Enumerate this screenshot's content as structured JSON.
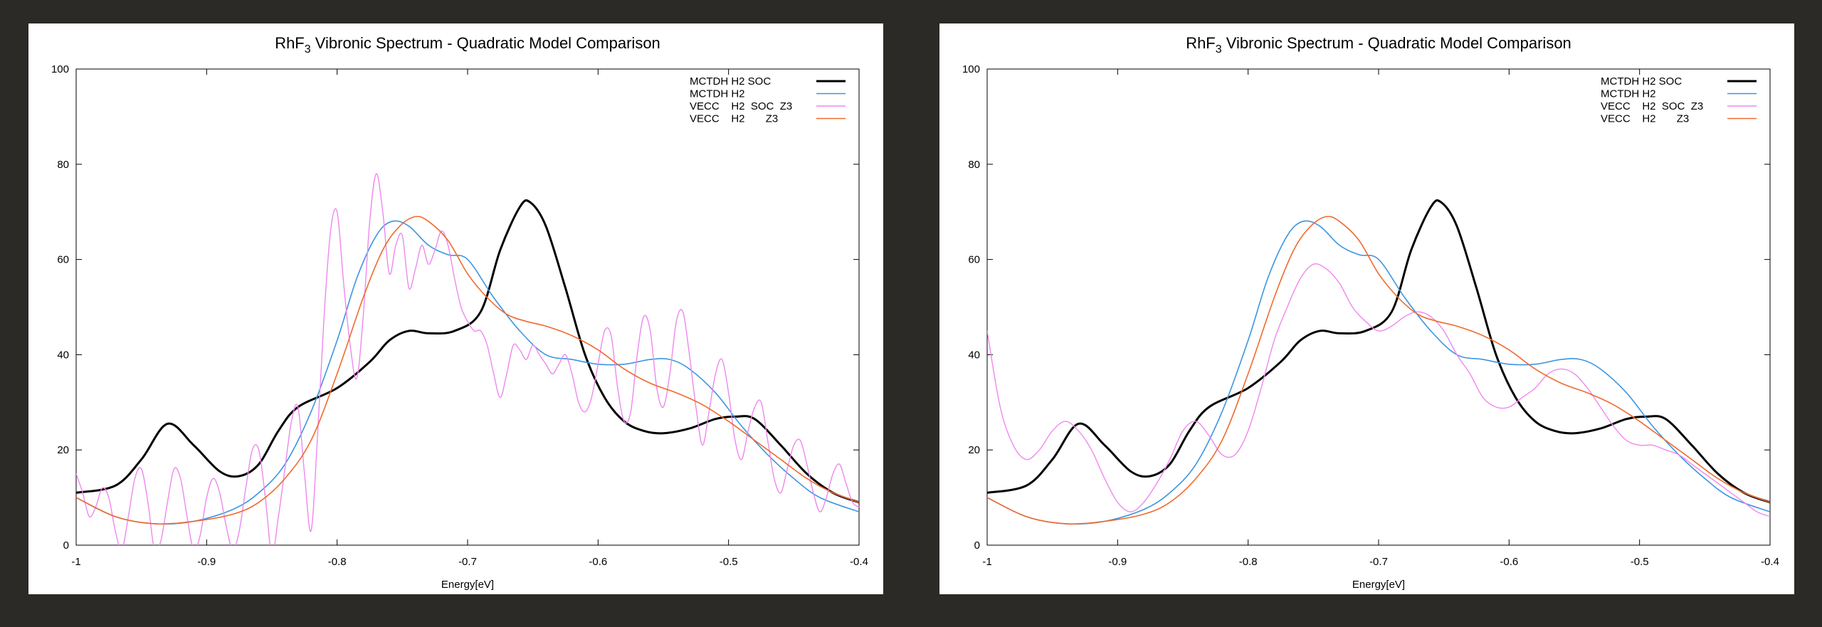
{
  "chart_data": [
    {
      "type": "line",
      "title": "RhF3 Vibronic Spectrum - Quadratic Model Comparison",
      "title_main": "RhF",
      "title_sub": "3",
      "title_rest": " Vibronic Spectrum - Quadratic Model Comparison",
      "xlabel": "Energy[eV]",
      "ylabel": "",
      "xlim": [
        -1,
        -0.4
      ],
      "ylim": [
        0,
        100
      ],
      "xticks": [
        "-1",
        "-0.9",
        "-0.8",
        "-0.7",
        "-0.6",
        "-0.5",
        "-0.4"
      ],
      "yticks": [
        "0",
        "20",
        "40",
        "60",
        "80",
        "100"
      ],
      "grid": false,
      "legend_position": "top-right",
      "series": [
        {
          "name": "MCTDH H2 SOC",
          "label": "MCTDH H2 SOC",
          "color": "#000000",
          "width": 3,
          "x": [
            -1,
            -0.97,
            -0.95,
            -0.93,
            -0.91,
            -0.89,
            -0.875,
            -0.86,
            -0.845,
            -0.83,
            -0.8,
            -0.775,
            -0.76,
            -0.745,
            -0.73,
            -0.71,
            -0.69,
            -0.675,
            -0.66,
            -0.652,
            -0.64,
            -0.625,
            -0.61,
            -0.595,
            -0.58,
            -0.565,
            -0.55,
            -0.53,
            -0.51,
            -0.495,
            -0.48,
            -0.46,
            -0.44,
            -0.42,
            -0.4
          ],
          "y": [
            11,
            12.5,
            18,
            25.5,
            21,
            15.5,
            14.5,
            17,
            24,
            29,
            33,
            38.5,
            43,
            45,
            44.5,
            45,
            49,
            62,
            71,
            72,
            67,
            54,
            40,
            31,
            26,
            24,
            23.5,
            24.5,
            26.5,
            27,
            26.5,
            21,
            15,
            11,
            9
          ]
        },
        {
          "name": "MCTDH H2",
          "label": "MCTDH H2",
          "color": "#3c95e0",
          "width": 1.6,
          "x": [
            -1,
            -0.97,
            -0.94,
            -0.91,
            -0.88,
            -0.86,
            -0.84,
            -0.82,
            -0.8,
            -0.785,
            -0.77,
            -0.758,
            -0.745,
            -0.73,
            -0.715,
            -0.7,
            -0.68,
            -0.66,
            -0.64,
            -0.62,
            -0.6,
            -0.58,
            -0.56,
            -0.545,
            -0.53,
            -0.51,
            -0.49,
            -0.47,
            -0.45,
            -0.43,
            -0.4
          ],
          "y": [
            10,
            6,
            4.5,
            5,
            7.5,
            11,
            17,
            28,
            43,
            56,
            65,
            68,
            67,
            63,
            61,
            60,
            52,
            45,
            40,
            39,
            38,
            38,
            39,
            39,
            37,
            32,
            25,
            19,
            14,
            10,
            7
          ]
        },
        {
          "name": "VECC H2 SOC Z3",
          "label": "VECC    H2  SOC  Z3",
          "color": "#ee88ee",
          "width": 1.4,
          "x": [
            -1,
            -0.995,
            -0.99,
            -0.985,
            -0.98,
            -0.975,
            -0.97,
            -0.965,
            -0.96,
            -0.955,
            -0.95,
            -0.945,
            -0.94,
            -0.935,
            -0.93,
            -0.925,
            -0.92,
            -0.915,
            -0.91,
            -0.905,
            -0.9,
            -0.895,
            -0.89,
            -0.885,
            -0.88,
            -0.875,
            -0.87,
            -0.865,
            -0.86,
            -0.855,
            -0.85,
            -0.845,
            -0.84,
            -0.835,
            -0.83,
            -0.825,
            -0.82,
            -0.815,
            -0.81,
            -0.805,
            -0.8,
            -0.795,
            -0.79,
            -0.785,
            -0.78,
            -0.775,
            -0.77,
            -0.765,
            -0.76,
            -0.755,
            -0.75,
            -0.745,
            -0.74,
            -0.735,
            -0.73,
            -0.725,
            -0.72,
            -0.715,
            -0.71,
            -0.705,
            -0.7,
            -0.695,
            -0.69,
            -0.685,
            -0.68,
            -0.675,
            -0.67,
            -0.665,
            -0.66,
            -0.655,
            -0.65,
            -0.645,
            -0.64,
            -0.635,
            -0.63,
            -0.625,
            -0.62,
            -0.615,
            -0.61,
            -0.605,
            -0.6,
            -0.595,
            -0.59,
            -0.585,
            -0.58,
            -0.575,
            -0.57,
            -0.565,
            -0.56,
            -0.555,
            -0.55,
            -0.545,
            -0.54,
            -0.535,
            -0.53,
            -0.525,
            -0.52,
            -0.515,
            -0.51,
            -0.505,
            -0.5,
            -0.495,
            -0.49,
            -0.485,
            -0.48,
            -0.475,
            -0.47,
            -0.465,
            -0.46,
            -0.455,
            -0.45,
            -0.445,
            -0.44,
            -0.435,
            -0.43,
            -0.425,
            -0.42,
            -0.415,
            -0.41,
            -0.405,
            -0.4
          ],
          "y": [
            15,
            11,
            6,
            8,
            12,
            10,
            3,
            -1,
            6,
            14,
            16,
            9,
            -1,
            1,
            9,
            16,
            14,
            6,
            -1,
            2,
            10,
            14,
            11,
            4,
            -1,
            3,
            12,
            20,
            20,
            10,
            -2,
            6,
            16,
            26,
            29,
            15,
            3,
            23,
            48,
            66,
            70,
            55,
            42,
            35,
            48,
            68,
            78,
            70,
            57,
            63,
            65,
            54,
            58,
            63,
            59,
            62,
            66,
            63,
            56,
            50,
            47,
            45,
            45,
            42,
            36,
            31,
            36,
            42,
            41,
            39,
            42,
            40,
            38,
            36,
            38,
            40,
            36,
            30,
            28,
            31,
            38,
            45,
            44,
            33,
            26,
            28,
            40,
            48,
            45,
            33,
            29,
            36,
            47,
            49,
            40,
            29,
            21,
            28,
            36,
            39,
            32,
            22,
            18,
            24,
            29,
            30,
            22,
            14,
            11,
            16,
            21,
            22,
            17,
            11,
            7,
            10,
            15,
            17,
            13,
            9,
            8
          ]
        },
        {
          "name": "VECC H2 Z3",
          "label": "VECC    H2       Z3",
          "color": "#f06a2e",
          "width": 1.6,
          "x": [
            -1,
            -0.97,
            -0.94,
            -0.91,
            -0.88,
            -0.86,
            -0.84,
            -0.82,
            -0.8,
            -0.78,
            -0.765,
            -0.752,
            -0.74,
            -0.73,
            -0.715,
            -0.7,
            -0.685,
            -0.67,
            -0.655,
            -0.64,
            -0.62,
            -0.6,
            -0.58,
            -0.56,
            -0.54,
            -0.52,
            -0.5,
            -0.48,
            -0.46,
            -0.44,
            -0.42,
            -0.4
          ],
          "y": [
            10,
            6,
            4.5,
            5,
            6.5,
            9,
            14,
            22,
            36,
            52,
            62,
            67,
            69,
            68,
            64,
            57,
            52,
            48.5,
            47,
            46,
            44,
            41,
            37,
            34,
            32,
            29.5,
            26,
            22,
            18,
            14,
            11,
            9
          ]
        }
      ]
    },
    {
      "type": "line",
      "title": "RhF3 Vibronic Spectrum - Quadratic Model Comparison",
      "title_main": "RhF",
      "title_sub": "3",
      "title_rest": " Vibronic Spectrum - Quadratic Model Comparison",
      "xlabel": "Energy[eV]",
      "ylabel": "",
      "xlim": [
        -1,
        -0.4
      ],
      "ylim": [
        0,
        100
      ],
      "xticks": [
        "-1",
        "-0.9",
        "-0.8",
        "-0.7",
        "-0.6",
        "-0.5",
        "-0.4"
      ],
      "yticks": [
        "0",
        "20",
        "40",
        "60",
        "80",
        "100"
      ],
      "grid": false,
      "legend_position": "top-right",
      "series": [
        {
          "name": "MCTDH H2 SOC",
          "label": "MCTDH H2 SOC",
          "color": "#000000",
          "width": 3,
          "x": [
            -1,
            -0.97,
            -0.95,
            -0.93,
            -0.91,
            -0.89,
            -0.875,
            -0.86,
            -0.845,
            -0.83,
            -0.8,
            -0.775,
            -0.76,
            -0.745,
            -0.73,
            -0.71,
            -0.69,
            -0.675,
            -0.66,
            -0.652,
            -0.64,
            -0.625,
            -0.61,
            -0.595,
            -0.58,
            -0.565,
            -0.55,
            -0.53,
            -0.51,
            -0.495,
            -0.48,
            -0.46,
            -0.44,
            -0.42,
            -0.4
          ],
          "y": [
            11,
            12.5,
            18,
            25.5,
            21,
            15.5,
            14.5,
            17,
            24,
            29,
            33,
            38.5,
            43,
            45,
            44.5,
            45,
            49,
            62,
            71,
            72,
            67,
            54,
            40,
            31,
            26,
            24,
            23.5,
            24.5,
            26.5,
            27,
            26.5,
            21,
            15,
            11,
            9
          ]
        },
        {
          "name": "MCTDH H2",
          "label": "MCTDH H2",
          "color": "#3c95e0",
          "width": 1.6,
          "x": [
            -1,
            -0.97,
            -0.94,
            -0.91,
            -0.88,
            -0.86,
            -0.84,
            -0.82,
            -0.8,
            -0.785,
            -0.77,
            -0.758,
            -0.745,
            -0.73,
            -0.715,
            -0.7,
            -0.68,
            -0.66,
            -0.64,
            -0.62,
            -0.6,
            -0.58,
            -0.56,
            -0.545,
            -0.53,
            -0.51,
            -0.49,
            -0.47,
            -0.45,
            -0.43,
            -0.4
          ],
          "y": [
            10,
            6,
            4.5,
            5,
            7.5,
            11,
            17,
            28,
            43,
            56,
            65,
            68,
            67,
            63,
            61,
            60,
            52,
            45,
            40,
            39,
            38,
            38,
            39,
            39,
            37,
            32,
            25,
            19,
            14,
            10,
            7
          ]
        },
        {
          "name": "VECC H2 SOC Z3",
          "label": "VECC    H2  SOC  Z3",
          "color": "#ee88ee",
          "width": 1.4,
          "x": [
            -1,
            -0.99,
            -0.98,
            -0.97,
            -0.96,
            -0.95,
            -0.94,
            -0.93,
            -0.92,
            -0.91,
            -0.9,
            -0.89,
            -0.88,
            -0.87,
            -0.86,
            -0.85,
            -0.84,
            -0.83,
            -0.82,
            -0.81,
            -0.8,
            -0.79,
            -0.78,
            -0.77,
            -0.76,
            -0.75,
            -0.74,
            -0.73,
            -0.72,
            -0.71,
            -0.7,
            -0.69,
            -0.68,
            -0.67,
            -0.66,
            -0.65,
            -0.64,
            -0.63,
            -0.62,
            -0.61,
            -0.6,
            -0.59,
            -0.58,
            -0.57,
            -0.56,
            -0.55,
            -0.54,
            -0.53,
            -0.52,
            -0.51,
            -0.5,
            -0.49,
            -0.48,
            -0.47,
            -0.46,
            -0.45,
            -0.44,
            -0.43,
            -0.42,
            -0.41,
            -0.4
          ],
          "y": [
            45,
            29,
            21,
            18,
            20,
            24,
            26,
            24,
            20,
            14,
            9,
            7,
            9,
            13,
            18,
            24,
            26,
            23,
            19,
            19,
            24,
            33,
            43,
            50,
            56,
            59,
            58,
            55,
            50,
            47,
            45,
            46,
            48,
            49,
            48,
            45,
            40,
            36,
            31,
            29,
            29,
            31,
            33,
            36,
            37,
            36,
            33,
            29,
            25,
            22,
            21,
            21,
            20,
            19,
            17,
            15,
            13,
            11,
            9,
            7,
            6
          ]
        },
        {
          "name": "VECC H2 Z3",
          "label": "VECC    H2       Z3",
          "color": "#f06a2e",
          "width": 1.6,
          "x": [
            -1,
            -0.97,
            -0.94,
            -0.91,
            -0.88,
            -0.86,
            -0.84,
            -0.82,
            -0.8,
            -0.78,
            -0.765,
            -0.752,
            -0.74,
            -0.73,
            -0.715,
            -0.7,
            -0.685,
            -0.67,
            -0.655,
            -0.64,
            -0.62,
            -0.6,
            -0.58,
            -0.56,
            -0.54,
            -0.52,
            -0.5,
            -0.48,
            -0.46,
            -0.44,
            -0.42,
            -0.4
          ],
          "y": [
            10,
            6,
            4.5,
            5,
            6.5,
            9,
            14,
            22,
            36,
            52,
            62,
            67,
            69,
            68,
            64,
            57,
            52,
            48.5,
            47,
            46,
            44,
            41,
            37,
            34,
            32,
            29.5,
            26,
            22,
            18,
            14,
            11,
            9
          ]
        }
      ]
    }
  ]
}
